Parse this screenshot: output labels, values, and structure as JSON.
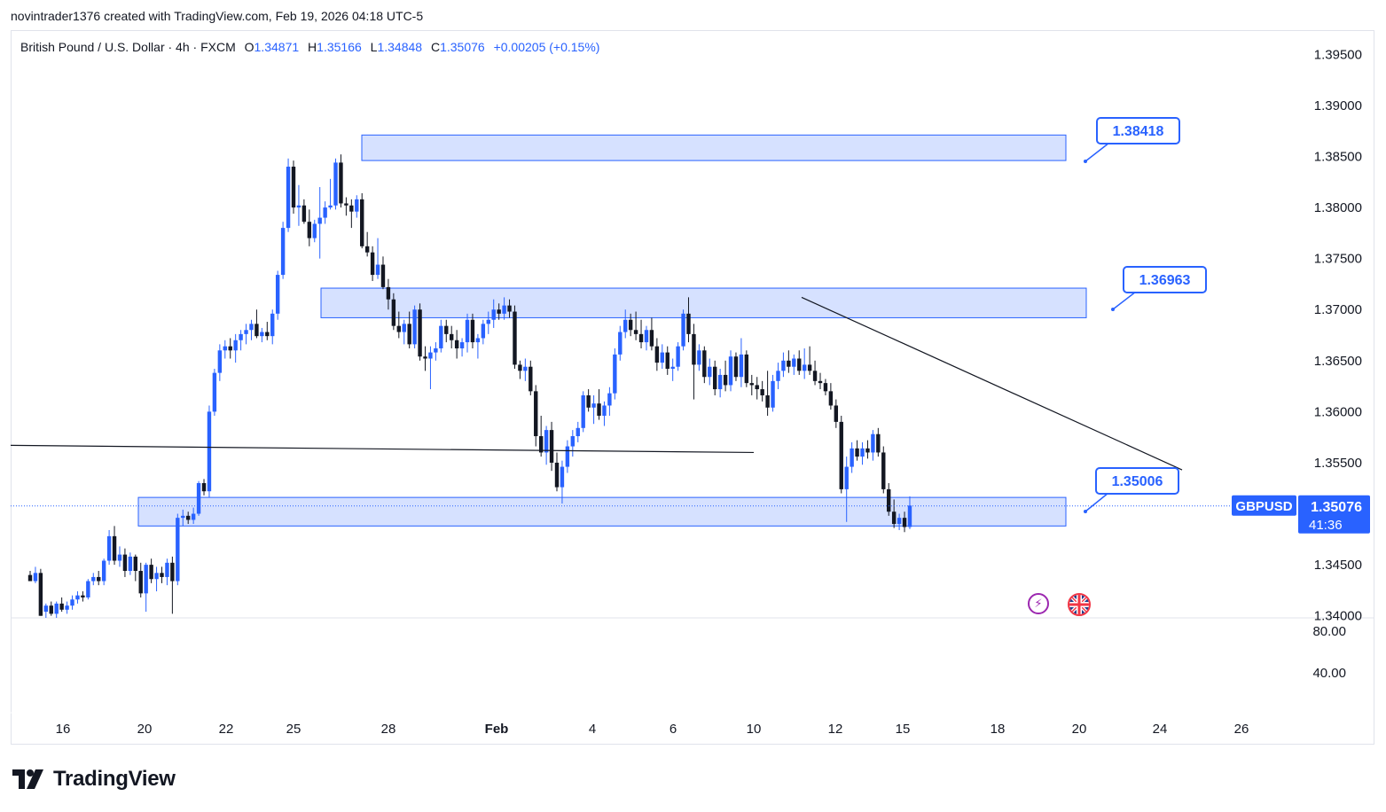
{
  "header": {
    "attribution": "novintrader1376 created with TradingView.com, Feb 19, 2026 04:18 UTC-5"
  },
  "legend": {
    "symbol": "British Pound / U.S. Dollar · 4h · FXCM",
    "open_label": "O",
    "open": "1.34871",
    "high_label": "H",
    "high": "1.35166",
    "low_label": "L",
    "low": "1.34848",
    "close_label": "C",
    "close": "1.35076",
    "change": "+0.00205 (+0.15%)"
  },
  "price_axis": {
    "labels": [
      "1.39500",
      "1.39000",
      "1.38500",
      "1.38000",
      "1.37500",
      "1.37000",
      "1.36500",
      "1.36000",
      "1.35500",
      "1.34500",
      "1.34000"
    ],
    "values": [
      1.395,
      1.39,
      1.385,
      1.38,
      1.375,
      1.37,
      1.365,
      1.36,
      1.355,
      1.345,
      1.34
    ],
    "current_symbol": "GBPUSD",
    "current_price": "1.35076",
    "countdown": "41:36"
  },
  "indicator_axis": {
    "labels": [
      "80.00",
      "40.00"
    ]
  },
  "time_axis": {
    "labels": [
      "16",
      "20",
      "22",
      "25",
      "28",
      "Feb",
      "4",
      "6",
      "10",
      "12",
      "15",
      "18",
      "20",
      "24",
      "26"
    ]
  },
  "colors": {
    "up": "#2962ff",
    "down": "#131722",
    "zone_fill": "#cfdcff",
    "zone_border": "#2962ff",
    "callout_border": "#2962ff",
    "callout_text": "#2962ff",
    "line": "#131722"
  },
  "chart_data": {
    "type": "candlestick",
    "title": "British Pound / U.S. Dollar · 4h · FXCM",
    "ylim": [
      1.3398,
      1.3972
    ],
    "zones": [
      {
        "name": "resistance-top",
        "low": 1.3846,
        "high": 1.3871,
        "label": "1.38418",
        "label_price": 1.3842
      },
      {
        "name": "resistance-mid",
        "low": 1.3692,
        "high": 1.3721,
        "label": "1.36963",
        "label_price": 1.3696
      },
      {
        "name": "support",
        "low": 1.3488,
        "high": 1.3516,
        "label": "1.35006",
        "label_price": 1.3501
      }
    ],
    "horizontal_line": {
      "from_price": 1.3567,
      "to_price": 1.356
    },
    "trendline": {
      "from_price": 1.3712,
      "to_price": 1.3543
    },
    "candles": [
      {
        "o": 1.344,
        "h": 1.3444,
        "l": 1.3434,
        "c": 1.3434
      },
      {
        "o": 1.3434,
        "h": 1.3448,
        "l": 1.3432,
        "c": 1.3442
      },
      {
        "o": 1.3442,
        "h": 1.3446,
        "l": 1.34,
        "c": 1.34
      },
      {
        "o": 1.3404,
        "h": 1.3412,
        "l": 1.3398,
        "c": 1.341
      },
      {
        "o": 1.341,
        "h": 1.3414,
        "l": 1.34,
        "c": 1.3402
      },
      {
        "o": 1.3402,
        "h": 1.3414,
        "l": 1.3398,
        "c": 1.3412
      },
      {
        "o": 1.3412,
        "h": 1.3418,
        "l": 1.3404,
        "c": 1.3406
      },
      {
        "o": 1.3406,
        "h": 1.3414,
        "l": 1.3402,
        "c": 1.341
      },
      {
        "o": 1.341,
        "h": 1.342,
        "l": 1.3406,
        "c": 1.3416
      },
      {
        "o": 1.3416,
        "h": 1.3424,
        "l": 1.3412,
        "c": 1.342
      },
      {
        "o": 1.342,
        "h": 1.3424,
        "l": 1.3414,
        "c": 1.3418
      },
      {
        "o": 1.3418,
        "h": 1.3436,
        "l": 1.3416,
        "c": 1.3434
      },
      {
        "o": 1.3434,
        "h": 1.3442,
        "l": 1.343,
        "c": 1.3438
      },
      {
        "o": 1.3438,
        "h": 1.3444,
        "l": 1.343,
        "c": 1.3434
      },
      {
        "o": 1.3434,
        "h": 1.3456,
        "l": 1.343,
        "c": 1.3454
      },
      {
        "o": 1.3454,
        "h": 1.3484,
        "l": 1.345,
        "c": 1.3478
      },
      {
        "o": 1.3478,
        "h": 1.3488,
        "l": 1.345,
        "c": 1.3454
      },
      {
        "o": 1.3454,
        "h": 1.3468,
        "l": 1.3448,
        "c": 1.346
      },
      {
        "o": 1.346,
        "h": 1.3466,
        "l": 1.3438,
        "c": 1.3444
      },
      {
        "o": 1.3444,
        "h": 1.3462,
        "l": 1.344,
        "c": 1.3458
      },
      {
        "o": 1.3458,
        "h": 1.346,
        "l": 1.3434,
        "c": 1.3444
      },
      {
        "o": 1.3444,
        "h": 1.3452,
        "l": 1.3418,
        "c": 1.3422
      },
      {
        "o": 1.3422,
        "h": 1.3452,
        "l": 1.3404,
        "c": 1.345
      },
      {
        "o": 1.345,
        "h": 1.3456,
        "l": 1.3432,
        "c": 1.3436
      },
      {
        "o": 1.3436,
        "h": 1.3448,
        "l": 1.3424,
        "c": 1.3442
      },
      {
        "o": 1.3442,
        "h": 1.3448,
        "l": 1.3432,
        "c": 1.3438
      },
      {
        "o": 1.3438,
        "h": 1.3456,
        "l": 1.343,
        "c": 1.3452
      },
      {
        "o": 1.3452,
        "h": 1.3458,
        "l": 1.3402,
        "c": 1.3434
      },
      {
        "o": 1.3434,
        "h": 1.35,
        "l": 1.343,
        "c": 1.3496
      },
      {
        "o": 1.3496,
        "h": 1.3504,
        "l": 1.3488,
        "c": 1.3498
      },
      {
        "o": 1.3498,
        "h": 1.3502,
        "l": 1.349,
        "c": 1.3494
      },
      {
        "o": 1.3494,
        "h": 1.3506,
        "l": 1.349,
        "c": 1.35
      },
      {
        "o": 1.35,
        "h": 1.3532,
        "l": 1.3498,
        "c": 1.353
      },
      {
        "o": 1.353,
        "h": 1.3534,
        "l": 1.3518,
        "c": 1.3522
      },
      {
        "o": 1.3522,
        "h": 1.3606,
        "l": 1.3516,
        "c": 1.36
      },
      {
        "o": 1.36,
        "h": 1.3642,
        "l": 1.3596,
        "c": 1.3638
      },
      {
        "o": 1.3638,
        "h": 1.3666,
        "l": 1.363,
        "c": 1.366
      },
      {
        "o": 1.366,
        "h": 1.367,
        "l": 1.3652,
        "c": 1.3664
      },
      {
        "o": 1.3664,
        "h": 1.3672,
        "l": 1.3652,
        "c": 1.366
      },
      {
        "o": 1.366,
        "h": 1.3676,
        "l": 1.3648,
        "c": 1.367
      },
      {
        "o": 1.367,
        "h": 1.368,
        "l": 1.366,
        "c": 1.3676
      },
      {
        "o": 1.3676,
        "h": 1.3686,
        "l": 1.3666,
        "c": 1.368
      },
      {
        "o": 1.368,
        "h": 1.369,
        "l": 1.367,
        "c": 1.3686
      },
      {
        "o": 1.3686,
        "h": 1.37,
        "l": 1.3672,
        "c": 1.3674
      },
      {
        "o": 1.3674,
        "h": 1.3682,
        "l": 1.3668,
        "c": 1.3678
      },
      {
        "o": 1.3678,
        "h": 1.3688,
        "l": 1.367,
        "c": 1.3674
      },
      {
        "o": 1.3674,
        "h": 1.37,
        "l": 1.3666,
        "c": 1.3696
      },
      {
        "o": 1.3696,
        "h": 1.3738,
        "l": 1.369,
        "c": 1.3734
      },
      {
        "o": 1.3734,
        "h": 1.3786,
        "l": 1.373,
        "c": 1.378
      },
      {
        "o": 1.378,
        "h": 1.3848,
        "l": 1.3776,
        "c": 1.384
      },
      {
        "o": 1.384,
        "h": 1.3846,
        "l": 1.3794,
        "c": 1.38
      },
      {
        "o": 1.38,
        "h": 1.3822,
        "l": 1.3782,
        "c": 1.3802
      },
      {
        "o": 1.3802,
        "h": 1.3808,
        "l": 1.3784,
        "c": 1.3786
      },
      {
        "o": 1.3786,
        "h": 1.3798,
        "l": 1.3762,
        "c": 1.377
      },
      {
        "o": 1.377,
        "h": 1.3788,
        "l": 1.3766,
        "c": 1.3784
      },
      {
        "o": 1.3784,
        "h": 1.382,
        "l": 1.375,
        "c": 1.379
      },
      {
        "o": 1.379,
        "h": 1.3806,
        "l": 1.3784,
        "c": 1.38
      },
      {
        "o": 1.38,
        "h": 1.3828,
        "l": 1.3798,
        "c": 1.3802
      },
      {
        "o": 1.3802,
        "h": 1.3848,
        "l": 1.3798,
        "c": 1.3844
      },
      {
        "o": 1.3844,
        "h": 1.3852,
        "l": 1.38,
        "c": 1.3804
      },
      {
        "o": 1.3804,
        "h": 1.381,
        "l": 1.3792,
        "c": 1.3802
      },
      {
        "o": 1.3802,
        "h": 1.3808,
        "l": 1.378,
        "c": 1.3796
      },
      {
        "o": 1.3796,
        "h": 1.3812,
        "l": 1.379,
        "c": 1.3808
      },
      {
        "o": 1.3808,
        "h": 1.3814,
        "l": 1.376,
        "c": 1.3762
      },
      {
        "o": 1.3762,
        "h": 1.3776,
        "l": 1.3752,
        "c": 1.3756
      },
      {
        "o": 1.3756,
        "h": 1.3762,
        "l": 1.3728,
        "c": 1.3734
      },
      {
        "o": 1.3734,
        "h": 1.377,
        "l": 1.373,
        "c": 1.3744
      },
      {
        "o": 1.3744,
        "h": 1.3752,
        "l": 1.372,
        "c": 1.3722
      },
      {
        "o": 1.3722,
        "h": 1.373,
        "l": 1.37,
        "c": 1.371
      },
      {
        "o": 1.371,
        "h": 1.3716,
        "l": 1.368,
        "c": 1.3684
      },
      {
        "o": 1.3684,
        "h": 1.3698,
        "l": 1.3672,
        "c": 1.3678
      },
      {
        "o": 1.3678,
        "h": 1.369,
        "l": 1.3666,
        "c": 1.3686
      },
      {
        "o": 1.3686,
        "h": 1.3698,
        "l": 1.3662,
        "c": 1.3666
      },
      {
        "o": 1.3666,
        "h": 1.3704,
        "l": 1.3662,
        "c": 1.37
      },
      {
        "o": 1.37,
        "h": 1.3706,
        "l": 1.365,
        "c": 1.3654
      },
      {
        "o": 1.3654,
        "h": 1.3664,
        "l": 1.364,
        "c": 1.3652
      },
      {
        "o": 1.3652,
        "h": 1.3664,
        "l": 1.3622,
        "c": 1.3658
      },
      {
        "o": 1.3658,
        "h": 1.3668,
        "l": 1.365,
        "c": 1.3662
      },
      {
        "o": 1.3662,
        "h": 1.369,
        "l": 1.3658,
        "c": 1.3684
      },
      {
        "o": 1.3684,
        "h": 1.369,
        "l": 1.3668,
        "c": 1.3676
      },
      {
        "o": 1.3676,
        "h": 1.3684,
        "l": 1.3662,
        "c": 1.367
      },
      {
        "o": 1.367,
        "h": 1.368,
        "l": 1.3652,
        "c": 1.3662
      },
      {
        "o": 1.3662,
        "h": 1.3672,
        "l": 1.3654,
        "c": 1.3668
      },
      {
        "o": 1.3668,
        "h": 1.3696,
        "l": 1.3658,
        "c": 1.369
      },
      {
        "o": 1.369,
        "h": 1.3696,
        "l": 1.3662,
        "c": 1.3668
      },
      {
        "o": 1.3668,
        "h": 1.3676,
        "l": 1.3652,
        "c": 1.3672
      },
      {
        "o": 1.3672,
        "h": 1.369,
        "l": 1.3666,
        "c": 1.3686
      },
      {
        "o": 1.3686,
        "h": 1.3698,
        "l": 1.3676,
        "c": 1.369
      },
      {
        "o": 1.369,
        "h": 1.371,
        "l": 1.3682,
        "c": 1.37
      },
      {
        "o": 1.37,
        "h": 1.3706,
        "l": 1.369,
        "c": 1.3696
      },
      {
        "o": 1.3696,
        "h": 1.3712,
        "l": 1.369,
        "c": 1.3704
      },
      {
        "o": 1.3704,
        "h": 1.371,
        "l": 1.3692,
        "c": 1.3698
      },
      {
        "o": 1.3698,
        "h": 1.3704,
        "l": 1.3642,
        "c": 1.3646
      },
      {
        "o": 1.3646,
        "h": 1.365,
        "l": 1.3632,
        "c": 1.364
      },
      {
        "o": 1.364,
        "h": 1.3652,
        "l": 1.363,
        "c": 1.3644
      },
      {
        "o": 1.3644,
        "h": 1.365,
        "l": 1.3616,
        "c": 1.362
      },
      {
        "o": 1.362,
        "h": 1.3626,
        "l": 1.3566,
        "c": 1.3576
      },
      {
        "o": 1.3576,
        "h": 1.3596,
        "l": 1.3556,
        "c": 1.356
      },
      {
        "o": 1.356,
        "h": 1.3586,
        "l": 1.3548,
        "c": 1.3582
      },
      {
        "o": 1.3582,
        "h": 1.359,
        "l": 1.3542,
        "c": 1.355
      },
      {
        "o": 1.355,
        "h": 1.356,
        "l": 1.3522,
        "c": 1.3526
      },
      {
        "o": 1.3526,
        "h": 1.3552,
        "l": 1.351,
        "c": 1.3546
      },
      {
        "o": 1.3546,
        "h": 1.3572,
        "l": 1.354,
        "c": 1.3566
      },
      {
        "o": 1.3566,
        "h": 1.3582,
        "l": 1.3556,
        "c": 1.3576
      },
      {
        "o": 1.3576,
        "h": 1.359,
        "l": 1.357,
        "c": 1.3584
      },
      {
        "o": 1.3584,
        "h": 1.362,
        "l": 1.358,
        "c": 1.3616
      },
      {
        "o": 1.3616,
        "h": 1.3622,
        "l": 1.36,
        "c": 1.3604
      },
      {
        "o": 1.3604,
        "h": 1.3616,
        "l": 1.3588,
        "c": 1.3608
      },
      {
        "o": 1.3608,
        "h": 1.3622,
        "l": 1.3592,
        "c": 1.3596
      },
      {
        "o": 1.3596,
        "h": 1.361,
        "l": 1.3586,
        "c": 1.3606
      },
      {
        "o": 1.3606,
        "h": 1.3624,
        "l": 1.3596,
        "c": 1.3618
      },
      {
        "o": 1.3618,
        "h": 1.3662,
        "l": 1.3612,
        "c": 1.3656
      },
      {
        "o": 1.3656,
        "h": 1.3684,
        "l": 1.365,
        "c": 1.3678
      },
      {
        "o": 1.3678,
        "h": 1.37,
        "l": 1.3672,
        "c": 1.369
      },
      {
        "o": 1.369,
        "h": 1.3696,
        "l": 1.3674,
        "c": 1.368
      },
      {
        "o": 1.368,
        "h": 1.3698,
        "l": 1.367,
        "c": 1.3676
      },
      {
        "o": 1.3676,
        "h": 1.369,
        "l": 1.3662,
        "c": 1.3668
      },
      {
        "o": 1.3668,
        "h": 1.3684,
        "l": 1.366,
        "c": 1.368
      },
      {
        "o": 1.368,
        "h": 1.3692,
        "l": 1.366,
        "c": 1.3664
      },
      {
        "o": 1.3664,
        "h": 1.3672,
        "l": 1.364,
        "c": 1.3648
      },
      {
        "o": 1.3648,
        "h": 1.3666,
        "l": 1.3642,
        "c": 1.3658
      },
      {
        "o": 1.3658,
        "h": 1.3664,
        "l": 1.3636,
        "c": 1.3642
      },
      {
        "o": 1.3642,
        "h": 1.3652,
        "l": 1.363,
        "c": 1.3644
      },
      {
        "o": 1.3644,
        "h": 1.3668,
        "l": 1.364,
        "c": 1.3664
      },
      {
        "o": 1.3664,
        "h": 1.37,
        "l": 1.366,
        "c": 1.3696
      },
      {
        "o": 1.3696,
        "h": 1.3712,
        "l": 1.3668,
        "c": 1.3676
      },
      {
        "o": 1.3676,
        "h": 1.3686,
        "l": 1.3612,
        "c": 1.3646
      },
      {
        "o": 1.3646,
        "h": 1.3666,
        "l": 1.364,
        "c": 1.366
      },
      {
        "o": 1.366,
        "h": 1.3664,
        "l": 1.3628,
        "c": 1.3634
      },
      {
        "o": 1.3634,
        "h": 1.3652,
        "l": 1.3626,
        "c": 1.3644
      },
      {
        "o": 1.3644,
        "h": 1.365,
        "l": 1.3616,
        "c": 1.3622
      },
      {
        "o": 1.3622,
        "h": 1.3642,
        "l": 1.3614,
        "c": 1.3636
      },
      {
        "o": 1.3636,
        "h": 1.365,
        "l": 1.362,
        "c": 1.3626
      },
      {
        "o": 1.3626,
        "h": 1.366,
        "l": 1.362,
        "c": 1.3654
      },
      {
        "o": 1.3654,
        "h": 1.3658,
        "l": 1.363,
        "c": 1.3634
      },
      {
        "o": 1.3634,
        "h": 1.3672,
        "l": 1.3624,
        "c": 1.3656
      },
      {
        "o": 1.3656,
        "h": 1.366,
        "l": 1.3624,
        "c": 1.3628
      },
      {
        "o": 1.3628,
        "h": 1.3636,
        "l": 1.3616,
        "c": 1.3626
      },
      {
        "o": 1.3626,
        "h": 1.3634,
        "l": 1.3612,
        "c": 1.3622
      },
      {
        "o": 1.3622,
        "h": 1.363,
        "l": 1.361,
        "c": 1.3616
      },
      {
        "o": 1.3616,
        "h": 1.364,
        "l": 1.3596,
        "c": 1.3604
      },
      {
        "o": 1.3604,
        "h": 1.3636,
        "l": 1.36,
        "c": 1.363
      },
      {
        "o": 1.363,
        "h": 1.3648,
        "l": 1.3622,
        "c": 1.364
      },
      {
        "o": 1.364,
        "h": 1.3658,
        "l": 1.3634,
        "c": 1.365
      },
      {
        "o": 1.365,
        "h": 1.366,
        "l": 1.3638,
        "c": 1.3644
      },
      {
        "o": 1.3644,
        "h": 1.3656,
        "l": 1.3636,
        "c": 1.3652
      },
      {
        "o": 1.3652,
        "h": 1.366,
        "l": 1.3636,
        "c": 1.364
      },
      {
        "o": 1.364,
        "h": 1.3662,
        "l": 1.3632,
        "c": 1.3646
      },
      {
        "o": 1.3646,
        "h": 1.3664,
        "l": 1.3636,
        "c": 1.364
      },
      {
        "o": 1.364,
        "h": 1.365,
        "l": 1.3626,
        "c": 1.363
      },
      {
        "o": 1.363,
        "h": 1.3638,
        "l": 1.3622,
        "c": 1.3628
      },
      {
        "o": 1.3628,
        "h": 1.3632,
        "l": 1.3616,
        "c": 1.362
      },
      {
        "o": 1.362,
        "h": 1.3628,
        "l": 1.3602,
        "c": 1.3606
      },
      {
        "o": 1.3606,
        "h": 1.3612,
        "l": 1.3584,
        "c": 1.359
      },
      {
        "o": 1.359,
        "h": 1.3596,
        "l": 1.352,
        "c": 1.3524
      },
      {
        "o": 1.3524,
        "h": 1.3556,
        "l": 1.3492,
        "c": 1.3546
      },
      {
        "o": 1.3546,
        "h": 1.357,
        "l": 1.354,
        "c": 1.3564
      },
      {
        "o": 1.3564,
        "h": 1.3572,
        "l": 1.3552,
        "c": 1.3556
      },
      {
        "o": 1.3556,
        "h": 1.357,
        "l": 1.3548,
        "c": 1.3564
      },
      {
        "o": 1.3564,
        "h": 1.3572,
        "l": 1.3554,
        "c": 1.356
      },
      {
        "o": 1.356,
        "h": 1.3582,
        "l": 1.3552,
        "c": 1.3578
      },
      {
        "o": 1.3578,
        "h": 1.3584,
        "l": 1.3556,
        "c": 1.356
      },
      {
        "o": 1.356,
        "h": 1.3566,
        "l": 1.352,
        "c": 1.3524
      },
      {
        "o": 1.3524,
        "h": 1.353,
        "l": 1.3498,
        "c": 1.3502
      },
      {
        "o": 1.3502,
        "h": 1.3514,
        "l": 1.3486,
        "c": 1.349
      },
      {
        "o": 1.349,
        "h": 1.35,
        "l": 1.3484,
        "c": 1.3496
      },
      {
        "o": 1.3496,
        "h": 1.3502,
        "l": 1.3482,
        "c": 1.3487
      },
      {
        "o": 1.3487,
        "h": 1.3517,
        "l": 1.3485,
        "c": 1.3508
      }
    ]
  },
  "branding": {
    "logo_text": "TradingView"
  }
}
